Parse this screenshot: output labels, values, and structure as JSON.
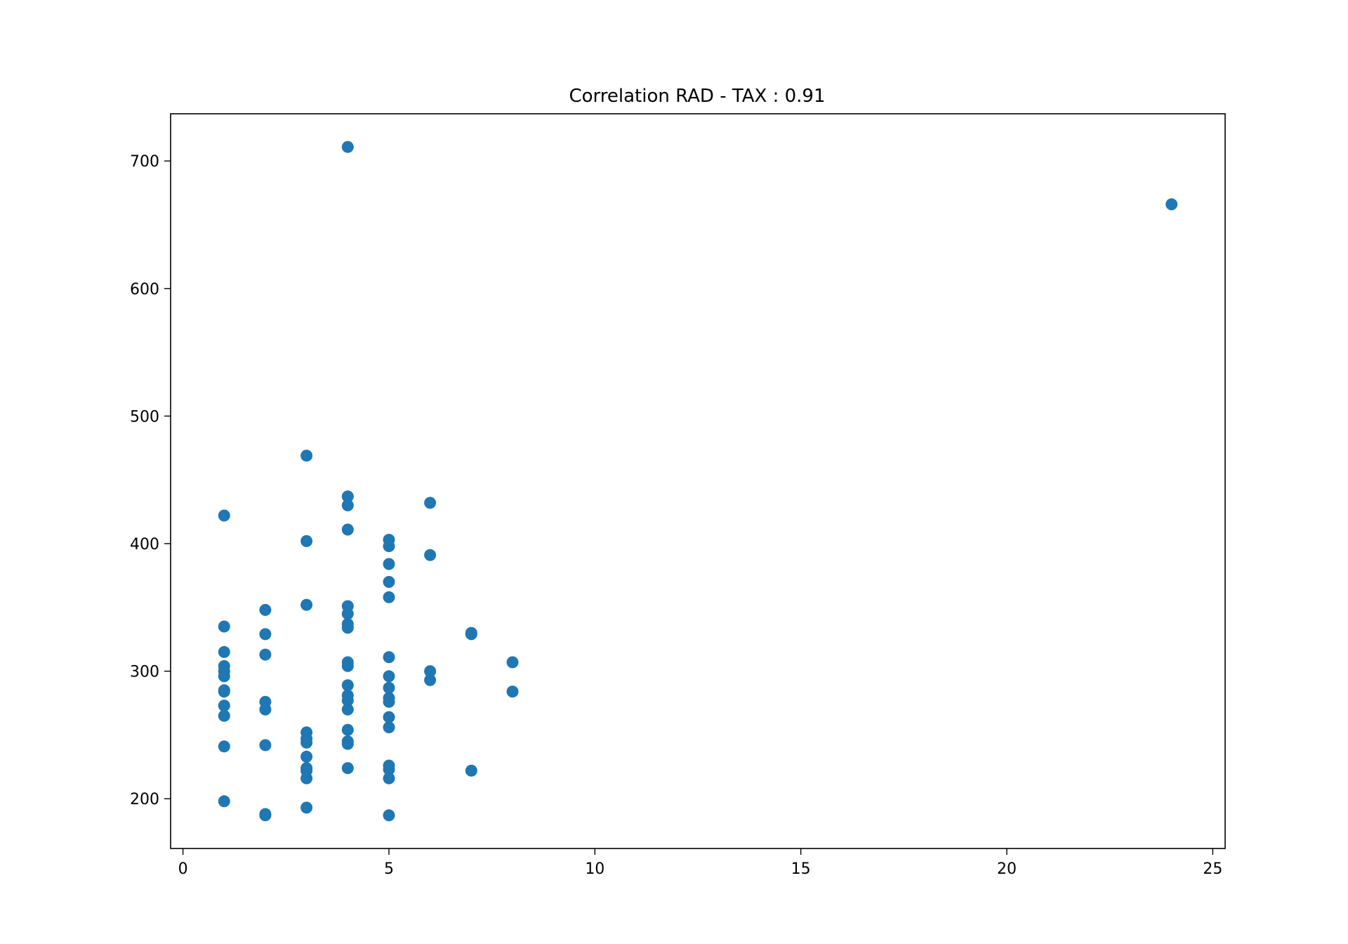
{
  "chart_data": {
    "type": "scatter",
    "title": "Correlation RAD - TAX : 0.91",
    "xlabel": "",
    "ylabel": "",
    "xlim": [
      -0.3,
      25.3
    ],
    "ylim": [
      161,
      737
    ],
    "xticks": [
      0,
      5,
      10,
      15,
      20,
      25
    ],
    "yticks": [
      200,
      300,
      400,
      500,
      600,
      700
    ],
    "grid": false,
    "legend": "none",
    "point_color": "#1f77b4",
    "points": [
      [
        1,
        422
      ],
      [
        1,
        335
      ],
      [
        1,
        315
      ],
      [
        1,
        304
      ],
      [
        1,
        300
      ],
      [
        1,
        296
      ],
      [
        1,
        285
      ],
      [
        1,
        284
      ],
      [
        1,
        273
      ],
      [
        1,
        265
      ],
      [
        1,
        241
      ],
      [
        1,
        198
      ],
      [
        2,
        348
      ],
      [
        2,
        329
      ],
      [
        2,
        313
      ],
      [
        2,
        276
      ],
      [
        2,
        270
      ],
      [
        2,
        242
      ],
      [
        2,
        188
      ],
      [
        2,
        187
      ],
      [
        3,
        469
      ],
      [
        3,
        402
      ],
      [
        3,
        352
      ],
      [
        3,
        252
      ],
      [
        3,
        247
      ],
      [
        3,
        244
      ],
      [
        3,
        233
      ],
      [
        3,
        224
      ],
      [
        3,
        222
      ],
      [
        3,
        216
      ],
      [
        3,
        193
      ],
      [
        4,
        711
      ],
      [
        4,
        437
      ],
      [
        4,
        430
      ],
      [
        4,
        411
      ],
      [
        4,
        351
      ],
      [
        4,
        345
      ],
      [
        4,
        337
      ],
      [
        4,
        334
      ],
      [
        4,
        307
      ],
      [
        4,
        304
      ],
      [
        4,
        289
      ],
      [
        4,
        281
      ],
      [
        4,
        277
      ],
      [
        4,
        270
      ],
      [
        4,
        254
      ],
      [
        4,
        245
      ],
      [
        4,
        243
      ],
      [
        4,
        224
      ],
      [
        5,
        403
      ],
      [
        5,
        398
      ],
      [
        5,
        384
      ],
      [
        5,
        370
      ],
      [
        5,
        358
      ],
      [
        5,
        311
      ],
      [
        5,
        296
      ],
      [
        5,
        287
      ],
      [
        5,
        279
      ],
      [
        5,
        276
      ],
      [
        5,
        264
      ],
      [
        5,
        256
      ],
      [
        5,
        226
      ],
      [
        5,
        223
      ],
      [
        5,
        216
      ],
      [
        5,
        187
      ],
      [
        6,
        432
      ],
      [
        6,
        391
      ],
      [
        6,
        300
      ],
      [
        6,
        293
      ],
      [
        7,
        330
      ],
      [
        7,
        329
      ],
      [
        7,
        222
      ],
      [
        8,
        307
      ],
      [
        8,
        284
      ],
      [
        24,
        666
      ]
    ]
  }
}
